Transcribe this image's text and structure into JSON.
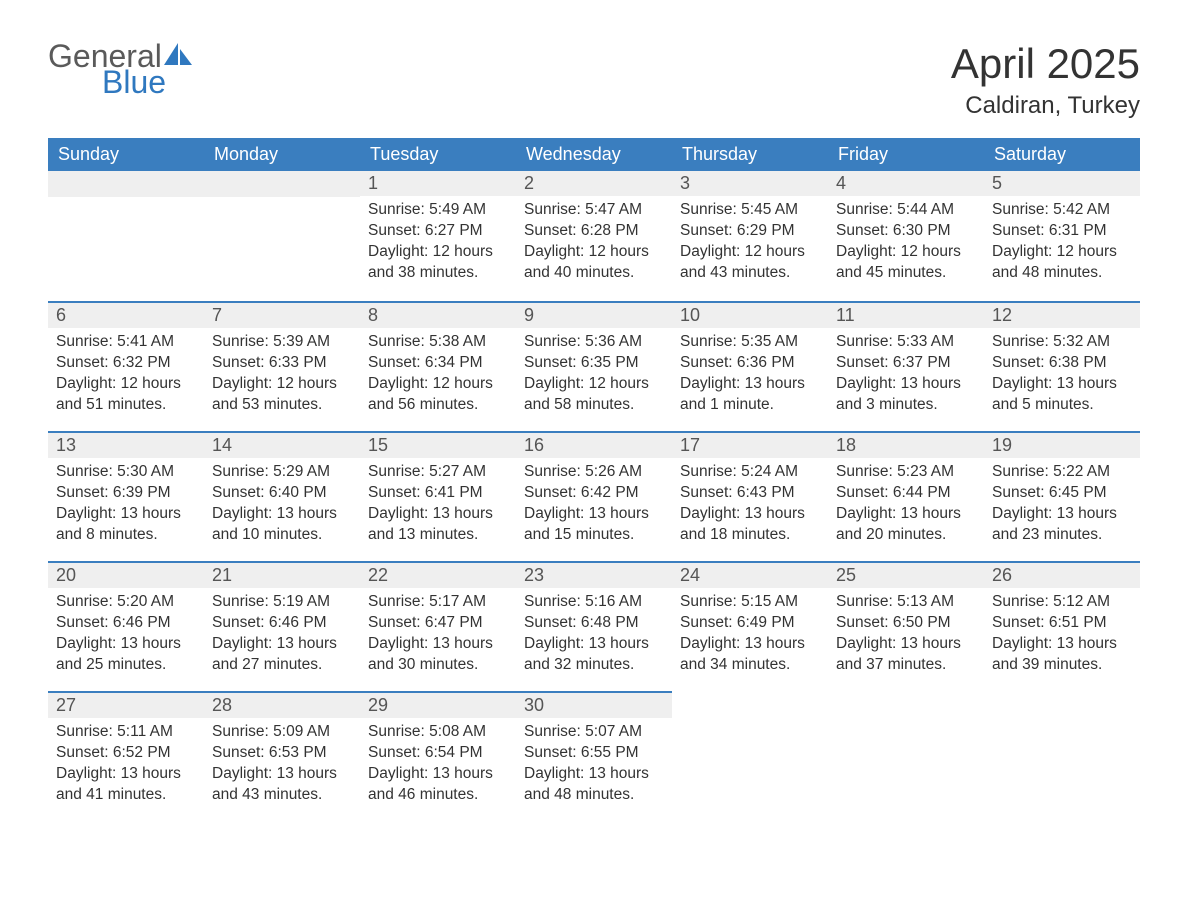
{
  "logo": {
    "top": "General",
    "bottom": "Blue"
  },
  "title": "April 2025",
  "location": "Caldiran, Turkey",
  "colors": {
    "header_bg": "#3a7ebf",
    "header_text": "#ffffff",
    "daynum_bg": "#efefef",
    "row_border": "#3a7ebf",
    "body_text": "#333333",
    "logo_gray": "#5a5a5a",
    "logo_blue": "#2f78bf"
  },
  "weekdays": [
    "Sunday",
    "Monday",
    "Tuesday",
    "Wednesday",
    "Thursday",
    "Friday",
    "Saturday"
  ],
  "labels": {
    "sunrise": "Sunrise: ",
    "sunset": "Sunset: ",
    "daylight": "Daylight: "
  },
  "weeks": [
    [
      null,
      null,
      {
        "n": "1",
        "sr": "5:49 AM",
        "ss": "6:27 PM",
        "dl": "12 hours and 38 minutes."
      },
      {
        "n": "2",
        "sr": "5:47 AM",
        "ss": "6:28 PM",
        "dl": "12 hours and 40 minutes."
      },
      {
        "n": "3",
        "sr": "5:45 AM",
        "ss": "6:29 PM",
        "dl": "12 hours and 43 minutes."
      },
      {
        "n": "4",
        "sr": "5:44 AM",
        "ss": "6:30 PM",
        "dl": "12 hours and 45 minutes."
      },
      {
        "n": "5",
        "sr": "5:42 AM",
        "ss": "6:31 PM",
        "dl": "12 hours and 48 minutes."
      }
    ],
    [
      {
        "n": "6",
        "sr": "5:41 AM",
        "ss": "6:32 PM",
        "dl": "12 hours and 51 minutes."
      },
      {
        "n": "7",
        "sr": "5:39 AM",
        "ss": "6:33 PM",
        "dl": "12 hours and 53 minutes."
      },
      {
        "n": "8",
        "sr": "5:38 AM",
        "ss": "6:34 PM",
        "dl": "12 hours and 56 minutes."
      },
      {
        "n": "9",
        "sr": "5:36 AM",
        "ss": "6:35 PM",
        "dl": "12 hours and 58 minutes."
      },
      {
        "n": "10",
        "sr": "5:35 AM",
        "ss": "6:36 PM",
        "dl": "13 hours and 1 minute."
      },
      {
        "n": "11",
        "sr": "5:33 AM",
        "ss": "6:37 PM",
        "dl": "13 hours and 3 minutes."
      },
      {
        "n": "12",
        "sr": "5:32 AM",
        "ss": "6:38 PM",
        "dl": "13 hours and 5 minutes."
      }
    ],
    [
      {
        "n": "13",
        "sr": "5:30 AM",
        "ss": "6:39 PM",
        "dl": "13 hours and 8 minutes."
      },
      {
        "n": "14",
        "sr": "5:29 AM",
        "ss": "6:40 PM",
        "dl": "13 hours and 10 minutes."
      },
      {
        "n": "15",
        "sr": "5:27 AM",
        "ss": "6:41 PM",
        "dl": "13 hours and 13 minutes."
      },
      {
        "n": "16",
        "sr": "5:26 AM",
        "ss": "6:42 PM",
        "dl": "13 hours and 15 minutes."
      },
      {
        "n": "17",
        "sr": "5:24 AM",
        "ss": "6:43 PM",
        "dl": "13 hours and 18 minutes."
      },
      {
        "n": "18",
        "sr": "5:23 AM",
        "ss": "6:44 PM",
        "dl": "13 hours and 20 minutes."
      },
      {
        "n": "19",
        "sr": "5:22 AM",
        "ss": "6:45 PM",
        "dl": "13 hours and 23 minutes."
      }
    ],
    [
      {
        "n": "20",
        "sr": "5:20 AM",
        "ss": "6:46 PM",
        "dl": "13 hours and 25 minutes."
      },
      {
        "n": "21",
        "sr": "5:19 AM",
        "ss": "6:46 PM",
        "dl": "13 hours and 27 minutes."
      },
      {
        "n": "22",
        "sr": "5:17 AM",
        "ss": "6:47 PM",
        "dl": "13 hours and 30 minutes."
      },
      {
        "n": "23",
        "sr": "5:16 AM",
        "ss": "6:48 PM",
        "dl": "13 hours and 32 minutes."
      },
      {
        "n": "24",
        "sr": "5:15 AM",
        "ss": "6:49 PM",
        "dl": "13 hours and 34 minutes."
      },
      {
        "n": "25",
        "sr": "5:13 AM",
        "ss": "6:50 PM",
        "dl": "13 hours and 37 minutes."
      },
      {
        "n": "26",
        "sr": "5:12 AM",
        "ss": "6:51 PM",
        "dl": "13 hours and 39 minutes."
      }
    ],
    [
      {
        "n": "27",
        "sr": "5:11 AM",
        "ss": "6:52 PM",
        "dl": "13 hours and 41 minutes."
      },
      {
        "n": "28",
        "sr": "5:09 AM",
        "ss": "6:53 PM",
        "dl": "13 hours and 43 minutes."
      },
      {
        "n": "29",
        "sr": "5:08 AM",
        "ss": "6:54 PM",
        "dl": "13 hours and 46 minutes."
      },
      {
        "n": "30",
        "sr": "5:07 AM",
        "ss": "6:55 PM",
        "dl": "13 hours and 48 minutes."
      },
      null,
      null,
      null
    ]
  ]
}
